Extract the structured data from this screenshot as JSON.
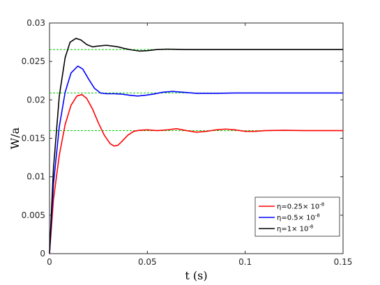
{
  "chart_data": {
    "type": "line",
    "xlabel": "t (s)",
    "ylabel": "W/a",
    "xlim": [
      0,
      0.15
    ],
    "ylim": [
      0,
      0.03
    ],
    "xticks": [
      0,
      0.05,
      0.1,
      0.15
    ],
    "xtick_labels": [
      "0",
      "0.05",
      "0.1",
      "0.15"
    ],
    "yticks": [
      0,
      0.005,
      0.01,
      0.015,
      0.02,
      0.025,
      0.03
    ],
    "ytick_labels": [
      "0",
      "0.005",
      "0.01",
      "0.015",
      "0.02",
      "0.025",
      "0.03"
    ],
    "grid": false,
    "legend_position": "bottom-right",
    "series": [
      {
        "name": "η=0.25× 10",
        "name_sup": "-8",
        "color": "#ff0000",
        "points": [
          [
            0,
            0
          ],
          [
            0.002,
            0.007
          ],
          [
            0.005,
            0.0128
          ],
          [
            0.008,
            0.0168
          ],
          [
            0.011,
            0.0193
          ],
          [
            0.014,
            0.0205
          ],
          [
            0.0165,
            0.0207
          ],
          [
            0.019,
            0.0202
          ],
          [
            0.022,
            0.0188
          ],
          [
            0.025,
            0.017
          ],
          [
            0.028,
            0.0154
          ],
          [
            0.031,
            0.0143
          ],
          [
            0.033,
            0.014
          ],
          [
            0.035,
            0.0141
          ],
          [
            0.037,
            0.0146
          ],
          [
            0.04,
            0.0154
          ],
          [
            0.043,
            0.0159
          ],
          [
            0.046,
            0.01605
          ],
          [
            0.05,
            0.0161
          ],
          [
            0.055,
            0.016
          ],
          [
            0.06,
            0.0161
          ],
          [
            0.065,
            0.01625
          ],
          [
            0.07,
            0.016
          ],
          [
            0.075,
            0.0158
          ],
          [
            0.08,
            0.0159
          ],
          [
            0.085,
            0.0161
          ],
          [
            0.09,
            0.0162
          ],
          [
            0.095,
            0.0161
          ],
          [
            0.1,
            0.0159
          ],
          [
            0.105,
            0.0159
          ],
          [
            0.11,
            0.016
          ],
          [
            0.12,
            0.01605
          ],
          [
            0.13,
            0.016
          ],
          [
            0.14,
            0.016
          ],
          [
            0.15,
            0.016
          ]
        ]
      },
      {
        "name": "η=0.5× 10",
        "name_sup": "-8",
        "color": "#0000ff",
        "points": [
          [
            0,
            0
          ],
          [
            0.002,
            0.009
          ],
          [
            0.005,
            0.0165
          ],
          [
            0.008,
            0.021
          ],
          [
            0.011,
            0.0235
          ],
          [
            0.0145,
            0.0244
          ],
          [
            0.017,
            0.024
          ],
          [
            0.02,
            0.0227
          ],
          [
            0.023,
            0.0215
          ],
          [
            0.026,
            0.0209
          ],
          [
            0.029,
            0.0208
          ],
          [
            0.033,
            0.0208
          ],
          [
            0.037,
            0.02075
          ],
          [
            0.041,
            0.0206
          ],
          [
            0.045,
            0.0205
          ],
          [
            0.049,
            0.0206
          ],
          [
            0.053,
            0.02075
          ],
          [
            0.058,
            0.021
          ],
          [
            0.063,
            0.0211
          ],
          [
            0.068,
            0.021
          ],
          [
            0.075,
            0.02085
          ],
          [
            0.085,
            0.02085
          ],
          [
            0.095,
            0.0209
          ],
          [
            0.11,
            0.0209
          ],
          [
            0.13,
            0.0209
          ],
          [
            0.15,
            0.0209
          ]
        ]
      },
      {
        "name": "η=1× 10",
        "name_sup": "-8",
        "color": "#000000",
        "points": [
          [
            0,
            0
          ],
          [
            0.002,
            0.011
          ],
          [
            0.005,
            0.0205
          ],
          [
            0.008,
            0.0255
          ],
          [
            0.0105,
            0.0275
          ],
          [
            0.0135,
            0.028
          ],
          [
            0.016,
            0.0278
          ],
          [
            0.019,
            0.0272
          ],
          [
            0.022,
            0.0269
          ],
          [
            0.025,
            0.027
          ],
          [
            0.029,
            0.0271
          ],
          [
            0.032,
            0.027
          ],
          [
            0.035,
            0.0269
          ],
          [
            0.038,
            0.0267
          ],
          [
            0.042,
            0.0265
          ],
          [
            0.046,
            0.02635
          ],
          [
            0.05,
            0.0264
          ],
          [
            0.055,
            0.02655
          ],
          [
            0.06,
            0.0266
          ],
          [
            0.07,
            0.02655
          ],
          [
            0.09,
            0.02655
          ],
          [
            0.11,
            0.02655
          ],
          [
            0.13,
            0.02655
          ],
          [
            0.15,
            0.02655
          ]
        ]
      }
    ],
    "reference_lines": [
      {
        "y": 0.016,
        "color": "#00cc00"
      },
      {
        "y": 0.0209,
        "color": "#00cc00"
      },
      {
        "y": 0.02655,
        "color": "#00cc00"
      }
    ]
  }
}
